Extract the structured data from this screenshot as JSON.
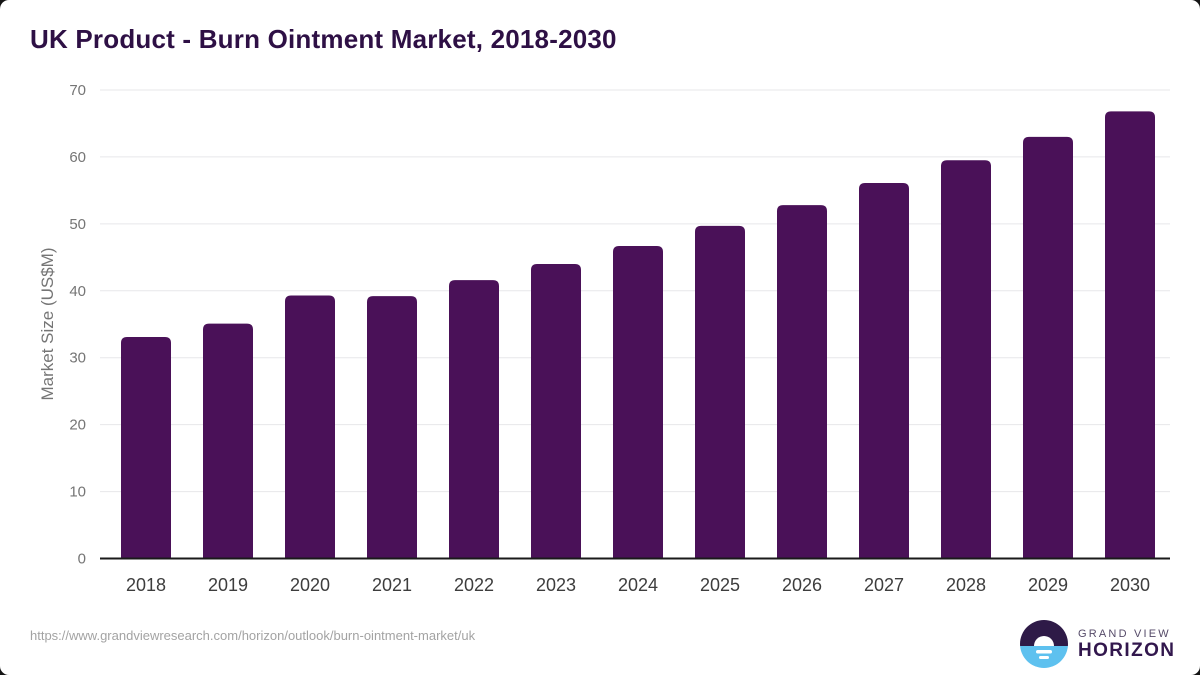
{
  "page": {
    "source_url": "https://www.grandviewresearch.com/horizon/outlook/burn-ointment-market/uk",
    "logo": {
      "brand_line1": "GRAND VIEW",
      "brand_line2": "HORIZON",
      "circle_top_color": "#2e1a47",
      "circle_bottom_color": "#5ec1ef"
    }
  },
  "chart_data": {
    "type": "bar",
    "title": "UK Product - Burn Ointment Market, 2018-2030",
    "xlabel": "",
    "ylabel": "Market Size (US$M)",
    "categories": [
      "2018",
      "2019",
      "2020",
      "2021",
      "2022",
      "2023",
      "2024",
      "2025",
      "2026",
      "2027",
      "2028",
      "2029",
      "2030"
    ],
    "values": [
      33.1,
      35.1,
      39.3,
      39.2,
      41.6,
      44.0,
      46.7,
      49.7,
      52.8,
      56.1,
      59.5,
      63.0,
      66.8
    ],
    "ylim": [
      0,
      70
    ],
    "ytick_step": 10,
    "yticks": [
      0,
      10,
      20,
      30,
      40,
      50,
      60,
      70
    ],
    "grid": true,
    "legend": "none",
    "colors": {
      "bar": "#4a1158",
      "grid": "#e7e7ea",
      "axis_line": "#1a1a1a",
      "ytick_label": "#757575",
      "xtick_label": "#3d3d3d"
    }
  }
}
